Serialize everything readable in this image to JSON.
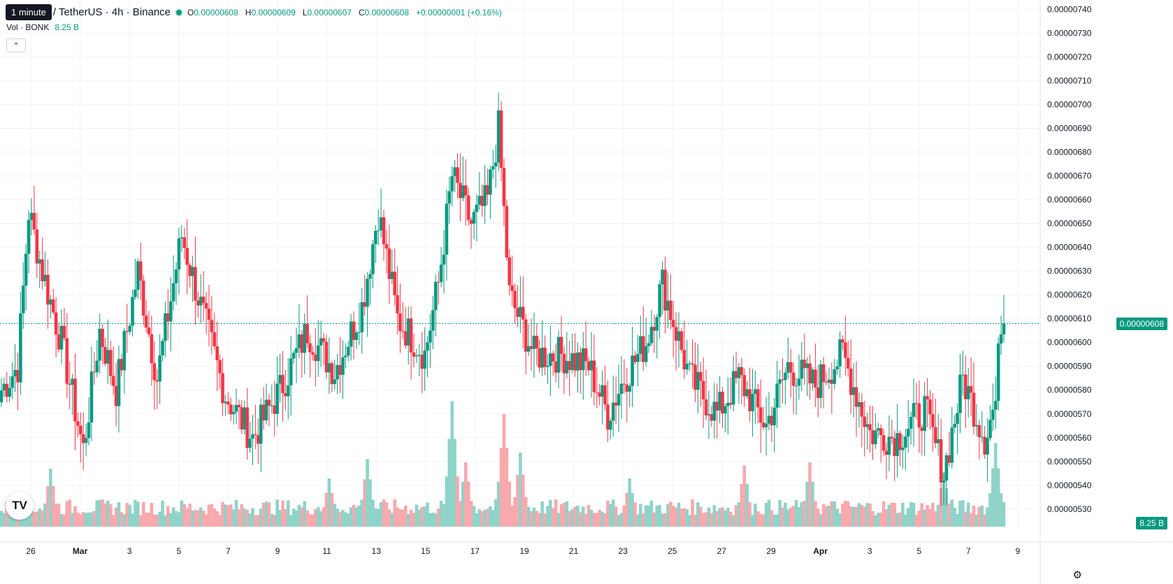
{
  "tooltip": "1 minute",
  "symbol": "/ TetherUS · 4h · Binance",
  "ohlc": {
    "o_label": "O",
    "o": "0.00000608",
    "h_label": "H",
    "h": "0.00000609",
    "l_label": "L",
    "l": "0.00000607",
    "c_label": "C",
    "c": "0.00000608",
    "change": "+0.00000001 (+0.16%)"
  },
  "volume": {
    "label": "Vol · BONK",
    "value": "8.25 B"
  },
  "last_price_label": "0.00000608",
  "last_volume_label": "8.25 B",
  "colors": {
    "up": "#089981",
    "down": "#f23645",
    "up_vol": "#8fd3c9",
    "down_vol": "#f7a9ae",
    "grid": "#f0f3fa"
  },
  "icons": {
    "collapse": "chevron-up-icon",
    "settings": "gear-icon",
    "logo": "tradingview-logo"
  },
  "chart_data": {
    "type": "candlestick",
    "price_axis_ticks": [
      "0.00000530",
      "0.00000540",
      "0.00000550",
      "0.00000560",
      "0.00000570",
      "0.00000580",
      "0.00000590",
      "0.00000600",
      "0.00000610",
      "0.00000620",
      "0.00000630",
      "0.00000640",
      "0.00000650",
      "0.00000660",
      "0.00000670",
      "0.00000680",
      "0.00000690",
      "0.00000700",
      "0.00000710",
      "0.00000720",
      "0.00000730",
      "0.00000740"
    ],
    "time_axis_ticks": [
      "26",
      "Mar",
      "3",
      "5",
      "7",
      "9",
      "11",
      "13",
      "15",
      "17",
      "19",
      "21",
      "23",
      "25",
      "27",
      "29",
      "Apr",
      "3",
      "5",
      "7",
      "9"
    ],
    "ylim": [
      5.22e-06,
      7.44e-06
    ],
    "last_price": 6.08e-06,
    "anchors": [
      [
        0,
        5.8e-06
      ],
      [
        6,
        5.9e-06
      ],
      [
        10,
        6.55e-06
      ],
      [
        15,
        6.3e-06
      ],
      [
        22,
        6e-06
      ],
      [
        30,
        5.55e-06
      ],
      [
        36,
        6.05e-06
      ],
      [
        42,
        5.8e-06
      ],
      [
        50,
        6.3e-06
      ],
      [
        57,
        5.85e-06
      ],
      [
        66,
        6.45e-06
      ],
      [
        73,
        6.15e-06
      ],
      [
        82,
        5.78e-06
      ],
      [
        92,
        5.6e-06
      ],
      [
        102,
        5.8e-06
      ],
      [
        112,
        6.05e-06
      ],
      [
        122,
        5.88e-06
      ],
      [
        132,
        6.15e-06
      ],
      [
        138,
        6.55e-06
      ],
      [
        145,
        6.1e-06
      ],
      [
        155,
        5.95e-06
      ],
      [
        160,
        6.25e-06
      ],
      [
        165,
        6.7e-06
      ],
      [
        172,
        6.5e-06
      ],
      [
        178,
        6.6e-06
      ],
      [
        182,
        6.9e-06
      ],
      [
        186,
        6.2e-06
      ],
      [
        195,
        5.95e-06
      ],
      [
        205,
        5.95e-06
      ],
      [
        215,
        5.9e-06
      ],
      [
        222,
        5.7e-06
      ],
      [
        228,
        5.85e-06
      ],
      [
        236,
        6e-06
      ],
      [
        242,
        6.25e-06
      ],
      [
        252,
        5.85e-06
      ],
      [
        262,
        5.7e-06
      ],
      [
        270,
        5.85e-06
      ],
      [
        280,
        5.65e-06
      ],
      [
        288,
        5.9e-06
      ],
      [
        298,
        5.82e-06
      ],
      [
        308,
        5.95e-06
      ],
      [
        318,
        5.62e-06
      ],
      [
        328,
        5.6e-06
      ],
      [
        338,
        5.72e-06
      ],
      [
        345,
        5.45e-06
      ],
      [
        352,
        5.85e-06
      ],
      [
        360,
        5.6e-06
      ],
      [
        364,
        5.75e-06
      ],
      [
        366,
        6.1e-06
      ],
      [
        367,
        6.08e-06
      ]
    ],
    "volume_peaks": [
      [
        18,
        1.8
      ],
      [
        120,
        1.5
      ],
      [
        134,
        2.1
      ],
      [
        165,
        3.9
      ],
      [
        170,
        2.0
      ],
      [
        184,
        3.5
      ],
      [
        190,
        2.3
      ],
      [
        230,
        1.5
      ],
      [
        272,
        1.9
      ],
      [
        296,
        2.0
      ],
      [
        345,
        1.7
      ],
      [
        364,
        2.6
      ]
    ]
  }
}
